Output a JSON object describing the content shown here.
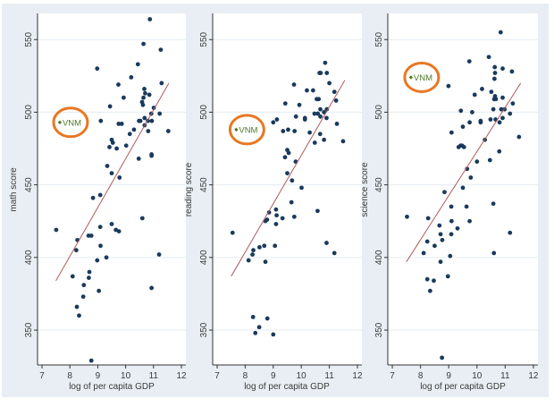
{
  "chart_data": [
    {
      "type": "scatter",
      "xlabel": "log of per capita GDP",
      "ylabel": "math score",
      "xlim": [
        6.84,
        12.16
      ],
      "ylim": [
        326,
        568
      ],
      "xticks": [
        "7",
        "8",
        "9",
        "10",
        "11",
        "12"
      ],
      "yticks": [
        "350",
        "400",
        "450",
        "500",
        "550"
      ],
      "grid": true,
      "highlight": {
        "label": "VNM",
        "x": 7.64,
        "y": 493
      },
      "fit_line": [
        [
          7.5,
          384
        ],
        [
          11.55,
          520
        ]
      ],
      "points": [
        [
          10.87,
          564
        ],
        [
          10.64,
          547
        ],
        [
          11.26,
          543
        ],
        [
          8.98,
          530
        ],
        [
          10.44,
          533
        ],
        [
          10.2,
          524
        ],
        [
          9.74,
          519
        ],
        [
          11.29,
          520
        ],
        [
          10.67,
          516
        ],
        [
          10.85,
          512
        ],
        [
          10.64,
          510
        ],
        [
          10.7,
          513
        ],
        [
          9.93,
          510
        ],
        [
          10.59,
          507
        ],
        [
          10.62,
          505
        ],
        [
          9.44,
          504
        ],
        [
          11.01,
          503
        ],
        [
          10.92,
          499
        ],
        [
          11.22,
          499
        ],
        [
          9.11,
          494
        ],
        [
          10.48,
          494
        ],
        [
          10.53,
          494
        ],
        [
          10.68,
          496
        ],
        [
          10.8,
          494
        ],
        [
          10.94,
          494
        ],
        [
          9.75,
          492
        ],
        [
          9.86,
          492
        ],
        [
          10.68,
          491
        ],
        [
          10.3,
          488
        ],
        [
          10.15,
          485
        ],
        [
          10.81,
          487
        ],
        [
          11.53,
          487
        ],
        [
          9.5,
          481
        ],
        [
          9.54,
          479
        ],
        [
          9.42,
          476
        ],
        [
          9.68,
          475
        ],
        [
          10.02,
          477
        ],
        [
          10.47,
          468
        ],
        [
          10.93,
          471
        ],
        [
          10.93,
          470
        ],
        [
          9.34,
          463
        ],
        [
          9.5,
          458
        ],
        [
          9.78,
          455
        ],
        [
          9.09,
          443
        ],
        [
          8.83,
          441
        ],
        [
          10.6,
          427
        ],
        [
          9.5,
          423
        ],
        [
          7.51,
          419
        ],
        [
          9.09,
          421
        ],
        [
          9.65,
          419
        ],
        [
          9.76,
          418
        ],
        [
          8.77,
          415
        ],
        [
          8.67,
          415
        ],
        [
          8.27,
          412
        ],
        [
          8.23,
          405
        ],
        [
          9.1,
          408
        ],
        [
          9.31,
          400
        ],
        [
          8.98,
          398
        ],
        [
          11.2,
          402
        ],
        [
          8.1,
          387
        ],
        [
          8.7,
          390
        ],
        [
          8.68,
          386
        ],
        [
          8.5,
          381
        ],
        [
          9.04,
          377
        ],
        [
          10.93,
          379
        ],
        [
          8.48,
          373
        ],
        [
          8.25,
          366
        ],
        [
          8.33,
          360
        ],
        [
          8.77,
          329
        ]
      ]
    },
    {
      "type": "scatter",
      "xlabel": "log of per capita GDP",
      "ylabel": "reading score",
      "xlim": [
        6.84,
        12.16
      ],
      "ylim": [
        326,
        568
      ],
      "xticks": [
        "7",
        "8",
        "9",
        "10",
        "11",
        "12"
      ],
      "yticks": [
        "350",
        "400",
        "450",
        "500",
        "550"
      ],
      "grid": true,
      "highlight": {
        "label": "VNM",
        "x": 7.68,
        "y": 488
      },
      "fit_line": [
        [
          7.5,
          387
        ],
        [
          11.55,
          522
        ]
      ],
      "points": [
        [
          10.85,
          534
        ],
        [
          10.65,
          527
        ],
        [
          10.69,
          527
        ],
        [
          10.91,
          527
        ],
        [
          11.0,
          520
        ],
        [
          9.74,
          519
        ],
        [
          10.2,
          515
        ],
        [
          10.42,
          515
        ],
        [
          11.18,
          514
        ],
        [
          10.55,
          509
        ],
        [
          10.62,
          509
        ],
        [
          11.24,
          508
        ],
        [
          9.43,
          506
        ],
        [
          9.93,
          505
        ],
        [
          10.68,
          502
        ],
        [
          10.91,
          502
        ],
        [
          10.81,
          500
        ],
        [
          10.47,
          499
        ],
        [
          10.59,
          499
        ],
        [
          9.81,
          497
        ],
        [
          10.13,
          496
        ],
        [
          10.13,
          495
        ],
        [
          10.68,
          497
        ],
        [
          10.9,
          496
        ],
        [
          9.0,
          493
        ],
        [
          9.13,
          495
        ],
        [
          9.35,
          487
        ],
        [
          9.53,
          488
        ],
        [
          9.76,
          487
        ],
        [
          10.3,
          486
        ],
        [
          10.67,
          485
        ],
        [
          11.27,
          492
        ],
        [
          10.48,
          479
        ],
        [
          10.81,
          481
        ],
        [
          11.49,
          480
        ],
        [
          9.5,
          474
        ],
        [
          9.55,
          472
        ],
        [
          9.42,
          469
        ],
        [
          9.8,
          466
        ],
        [
          9.5,
          458
        ],
        [
          9.67,
          453
        ],
        [
          10.01,
          448
        ],
        [
          9.65,
          438
        ],
        [
          10.58,
          432
        ],
        [
          9.1,
          433
        ],
        [
          9.12,
          429
        ],
        [
          8.85,
          431
        ],
        [
          9.75,
          428
        ],
        [
          9.33,
          427
        ],
        [
          8.78,
          426
        ],
        [
          8.72,
          425
        ],
        [
          9.1,
          423
        ],
        [
          7.55,
          417
        ],
        [
          8.68,
          408
        ],
        [
          8.51,
          407
        ],
        [
          9.06,
          408
        ],
        [
          10.9,
          410
        ],
        [
          8.29,
          405
        ],
        [
          8.26,
          402
        ],
        [
          8.12,
          398
        ],
        [
          8.72,
          397
        ],
        [
          11.18,
          403
        ],
        [
          8.28,
          359
        ],
        [
          8.79,
          358
        ],
        [
          8.5,
          352
        ],
        [
          8.36,
          348
        ],
        [
          9.0,
          347
        ]
      ]
    },
    {
      "type": "scatter",
      "xlabel": "log of per capita GDP",
      "ylabel": "science score",
      "xlim": [
        6.84,
        12.16
      ],
      "ylim": [
        326,
        568
      ],
      "xticks": [
        "7",
        "8",
        "9",
        "10",
        "11",
        "12"
      ],
      "yticks": [
        "350",
        "400",
        "450",
        "500",
        "550"
      ],
      "grid": true,
      "highlight": {
        "label": "VNM",
        "x": 7.66,
        "y": 524
      },
      "fit_line": [
        [
          7.5,
          397
        ],
        [
          11.55,
          520
        ]
      ],
      "points": [
        [
          10.84,
          555
        ],
        [
          10.42,
          538
        ],
        [
          9.73,
          535
        ],
        [
          10.63,
          531
        ],
        [
          10.91,
          530
        ],
        [
          10.64,
          527
        ],
        [
          11.24,
          528
        ],
        [
          10.62,
          523
        ],
        [
          8.99,
          518
        ],
        [
          10.18,
          516
        ],
        [
          10.51,
          514
        ],
        [
          9.92,
          512
        ],
        [
          10.61,
          509
        ],
        [
          10.67,
          509
        ],
        [
          10.64,
          511
        ],
        [
          10.91,
          510
        ],
        [
          11.27,
          506
        ],
        [
          10.58,
          502
        ],
        [
          9.43,
          501
        ],
        [
          10.86,
          502
        ],
        [
          10.98,
          502
        ],
        [
          9.83,
          500
        ],
        [
          11.17,
          499
        ],
        [
          9.74,
          493
        ],
        [
          10.13,
          494
        ],
        [
          10.13,
          493
        ],
        [
          10.48,
          495
        ],
        [
          10.66,
          495
        ],
        [
          10.8,
          493
        ],
        [
          10.91,
          496
        ],
        [
          9.5,
          490
        ],
        [
          9.1,
          486
        ],
        [
          10.28,
          481
        ],
        [
          11.49,
          483
        ],
        [
          9.35,
          476
        ],
        [
          9.42,
          477
        ],
        [
          9.47,
          477
        ],
        [
          9.54,
          476
        ],
        [
          10.79,
          473
        ],
        [
          10.46,
          467
        ],
        [
          10.0,
          466
        ],
        [
          9.65,
          461
        ],
        [
          9.78,
          455
        ],
        [
          9.5,
          448
        ],
        [
          8.85,
          445
        ],
        [
          10.58,
          437
        ],
        [
          9.09,
          435
        ],
        [
          9.63,
          435
        ],
        [
          7.52,
          428
        ],
        [
          8.27,
          427
        ],
        [
          9.1,
          425
        ],
        [
          9.74,
          425
        ],
        [
          8.67,
          422
        ],
        [
          9.31,
          420
        ],
        [
          8.71,
          416
        ],
        [
          9.09,
          416
        ],
        [
          11.17,
          417
        ],
        [
          8.77,
          412
        ],
        [
          8.24,
          411
        ],
        [
          8.5,
          408
        ],
        [
          8.11,
          403
        ],
        [
          10.6,
          403
        ],
        [
          9.05,
          401
        ],
        [
          8.71,
          397
        ],
        [
          8.97,
          387
        ],
        [
          8.24,
          385
        ],
        [
          8.47,
          384
        ],
        [
          8.34,
          377
        ],
        [
          8.76,
          331
        ]
      ]
    }
  ],
  "colors": {
    "background": "#e8eef3",
    "plot": "#ffffff",
    "grid": "#e4ecf2",
    "point": "#1a3a5c",
    "fit": "#b05a5a",
    "highlight": "#4f7a28",
    "circle": "#e87722"
  }
}
